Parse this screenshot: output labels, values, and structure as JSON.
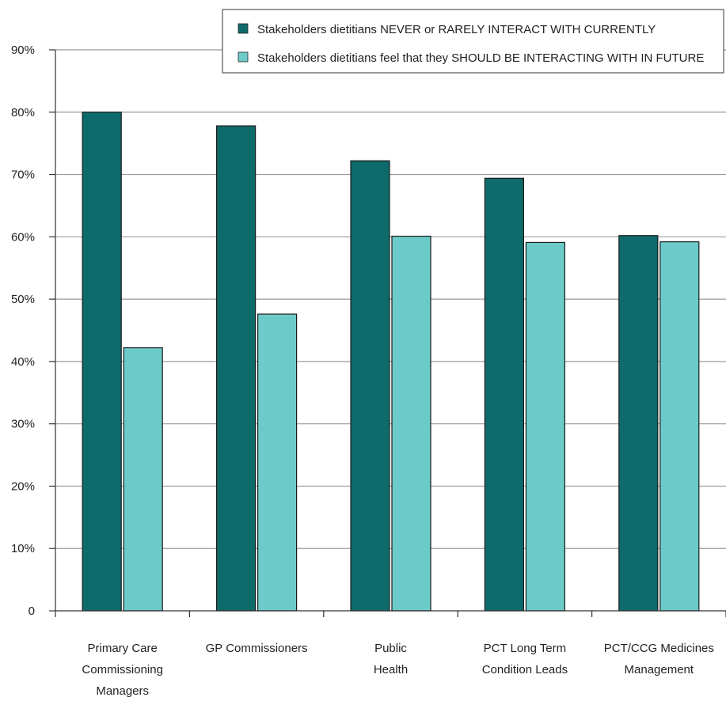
{
  "chart_data": {
    "type": "bar",
    "title": "",
    "xlabel": "",
    "ylabel": "",
    "ylim": [
      0,
      90
    ],
    "yticks": [
      "0",
      "10%",
      "20%",
      "30%",
      "40%",
      "50%",
      "60%",
      "70%",
      "80%",
      "90%"
    ],
    "ytick_values": [
      0,
      10,
      20,
      30,
      40,
      50,
      60,
      70,
      80,
      90
    ],
    "grid": true,
    "legend_position": "top-right",
    "categories": [
      [
        "Primary Care",
        "Commissioning",
        "Managers"
      ],
      [
        "GP Commissioners"
      ],
      [
        "Public",
        "Health"
      ],
      [
        "PCT Long Term",
        "Condition Leads"
      ],
      [
        "PCT/CCG Medicines",
        "Management"
      ]
    ],
    "series": [
      {
        "name": "Stakeholders dietitians NEVER or RARELY INTERACT WITH CURRENTLY",
        "color": "#0e6b6b",
        "values": [
          80,
          77.8,
          72.2,
          69.4,
          60.2
        ]
      },
      {
        "name": "Stakeholders dietitians feel that they SHOULD BE INTERACTING WITH IN FUTURE",
        "color": "#6ccbc8",
        "values": [
          42.2,
          47.6,
          60.1,
          59.1,
          59.2
        ]
      }
    ]
  }
}
